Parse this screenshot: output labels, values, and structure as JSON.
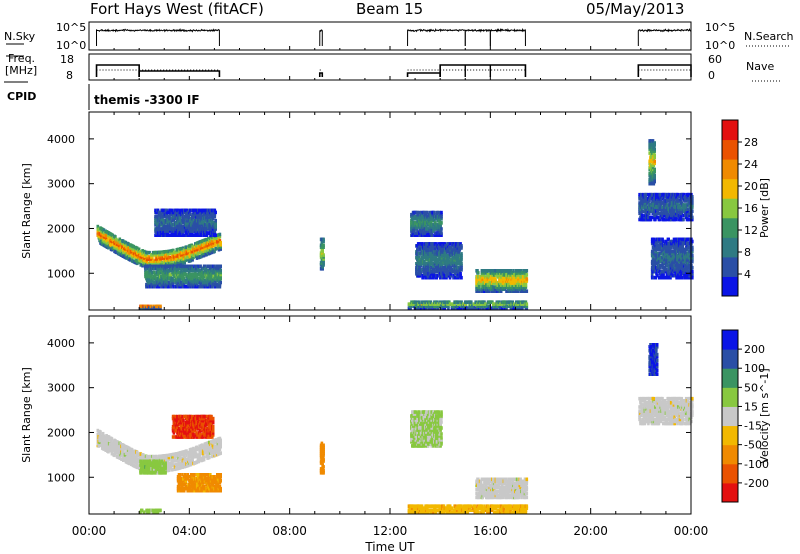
{
  "header": {
    "title": "Fort Hays West (fitACF)",
    "beam": "Beam 15",
    "date": "05/May/2013"
  },
  "side_labels": {
    "nsky": "N.Sky",
    "freq_line1": "Freq.",
    "freq_line2": "[MHz]",
    "cpid": "CPID",
    "nsearch": "N.Search",
    "nave": "Nave"
  },
  "cpid_text": "themis -3300 IF",
  "colors": {
    "power_scale": [
      "#0a14e6",
      "#2a4fa6",
      "#2f7a83",
      "#3a9462",
      "#88c840",
      "#f2b800",
      "#f08a00",
      "#ea5200",
      "#e41010"
    ],
    "velocity_scale": [
      "#e41010",
      "#ea5200",
      "#f08a00",
      "#f2b800",
      "#c8c8c8",
      "#88c840",
      "#3a9462",
      "#2a4fa6",
      "#0a14e6"
    ]
  },
  "chart_data": [
    {
      "type": "line",
      "name": "status-noise-sky",
      "ylabel": "N.Sky",
      "y_tick_labels": [
        "10^5",
        "10^0"
      ],
      "right_ylabel": "N.Search",
      "right_tick_labels": [
        "10^5",
        "10^0"
      ],
      "xlim_hours": [
        0,
        24
      ],
      "noise_sky_high_periods_hours": [
        [
          0.3,
          5.2
        ],
        [
          9.2,
          9.3
        ],
        [
          12.7,
          17.4
        ],
        [
          21.9,
          24.0
        ]
      ]
    },
    {
      "type": "line",
      "name": "status-frequency",
      "ylabel": "Freq. [MHz]",
      "y_tick_labels": [
        "18",
        "8"
      ],
      "ylim": [
        8,
        18
      ],
      "right_ylabel": "Nave",
      "right_tick_labels": [
        "60",
        "0"
      ],
      "right_ylim": [
        0,
        60
      ],
      "xlim_hours": [
        0,
        24
      ],
      "frequency_segments_hours_mhz": [
        [
          0.3,
          2.0,
          14
        ],
        [
          2.0,
          5.2,
          11
        ],
        [
          9.2,
          9.3,
          10
        ],
        [
          12.7,
          14.0,
          10
        ],
        [
          14.0,
          17.4,
          14
        ],
        [
          21.9,
          24.0,
          14
        ]
      ],
      "nave_dotted_level": 21
    },
    {
      "type": "heatmap",
      "name": "power",
      "ylabel": "Slant Range [km]",
      "y_ticks": [
        1000,
        2000,
        3000,
        4000
      ],
      "ylim": [
        180,
        4600
      ],
      "xlim_hours": [
        0,
        24
      ],
      "colorbar_label": "Power [dB]",
      "colorbar_ticks": [
        "4",
        "8",
        "12",
        "16",
        "20",
        "24",
        "28"
      ],
      "colorbar_range": [
        0,
        32
      ],
      "scatter_regions": [
        {
          "t": [
            0.3,
            5.2
          ],
          "range_start": [
            1900,
            1100
          ],
          "range_end": [
            1600,
            1800
          ],
          "width": 380,
          "peak_db": 26
        },
        {
          "t": [
            2.2,
            5.2
          ],
          "range": [
            700,
            1200
          ],
          "peak_db": 14
        },
        {
          "t": [
            2.6,
            5.0
          ],
          "range": [
            1850,
            2450
          ],
          "peak_db": 8
        },
        {
          "t": [
            2.0,
            2.8
          ],
          "range": [
            220,
            300
          ],
          "peak_db": 24
        },
        {
          "t": [
            9.2,
            9.3
          ],
          "range": [
            1100,
            1800
          ],
          "peak_db": 18
        },
        {
          "t": [
            12.7,
            17.4
          ],
          "range": [
            220,
            400
          ],
          "peak_db": 16
        },
        {
          "t": [
            15.4,
            17.4
          ],
          "range": [
            600,
            1100
          ],
          "peak_db": 22
        },
        {
          "t": [
            12.8,
            14.0
          ],
          "range": [
            1850,
            2400
          ],
          "peak_db": 12
        },
        {
          "t": [
            13.0,
            14.8
          ],
          "range": [
            900,
            1700
          ],
          "peak_db": 10
        },
        {
          "t": [
            21.9,
            24.0
          ],
          "range": [
            2200,
            2800
          ],
          "peak_db": 8
        },
        {
          "t": [
            22.4,
            24.0
          ],
          "range": [
            900,
            1800
          ],
          "peak_db": 8
        },
        {
          "t": [
            22.3,
            22.5
          ],
          "range": [
            3000,
            4000
          ],
          "peak_db": 20
        }
      ]
    },
    {
      "type": "heatmap",
      "name": "velocity",
      "ylabel": "Slant Range [km]",
      "y_ticks": [
        1000,
        2000,
        3000,
        4000
      ],
      "ylim": [
        180,
        4600
      ],
      "xlim_hours": [
        0,
        24
      ],
      "xlabel": "Time UT",
      "x_tick_labels": [
        "00:00",
        "04:00",
        "08:00",
        "12:00",
        "16:00",
        "20:00",
        "00:00"
      ],
      "colorbar_label": "Velocity [m s^-1]",
      "colorbar_ticks": [
        "-200",
        "-100",
        "-50",
        "-15",
        "15",
        "50",
        "100",
        "200"
      ],
      "scatter_regions": [
        {
          "t": [
            0.3,
            5.2
          ],
          "range_start": [
            1900,
            1100
          ],
          "range_end": [
            1600,
            1800
          ],
          "width": 380,
          "velocity": 0
        },
        {
          "t": [
            3.3,
            4.9
          ],
          "range": [
            1900,
            2400
          ],
          "velocity": -200
        },
        {
          "t": [
            3.5,
            5.2
          ],
          "range": [
            700,
            1100
          ],
          "velocity": -60
        },
        {
          "t": [
            2.0,
            3.0
          ],
          "range": [
            1100,
            1400
          ],
          "velocity": 30
        },
        {
          "t": [
            2.0,
            2.8
          ],
          "range": [
            220,
            300
          ],
          "velocity": 30
        },
        {
          "t": [
            9.2,
            9.3
          ],
          "range": [
            1100,
            1800
          ],
          "velocity": -80
        },
        {
          "t": [
            12.7,
            17.4
          ],
          "range": [
            220,
            400
          ],
          "velocity": -40
        },
        {
          "t": [
            15.4,
            17.4
          ],
          "range": [
            550,
            1000
          ],
          "velocity": 0
        },
        {
          "t": [
            12.8,
            14.0
          ],
          "range": [
            1700,
            2500
          ],
          "velocity": 20
        },
        {
          "t": [
            21.9,
            24.0
          ],
          "range": [
            2200,
            2800
          ],
          "velocity": 0
        },
        {
          "t": [
            22.3,
            22.6
          ],
          "range": [
            3300,
            4000
          ],
          "velocity": 200
        }
      ]
    }
  ]
}
